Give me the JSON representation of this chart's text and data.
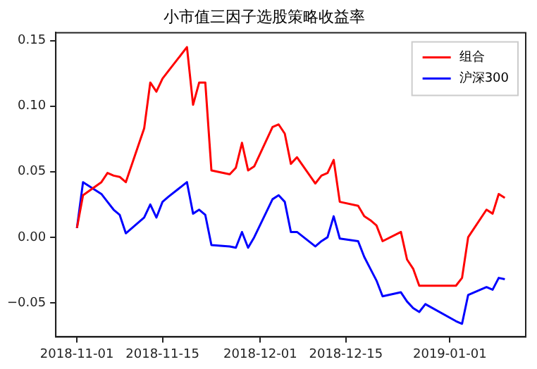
{
  "chart_data": {
    "type": "line",
    "title": "小市值三因子选股策略收益率",
    "x": [
      "2018-11-01",
      "2018-11-02",
      "2018-11-05",
      "2018-11-06",
      "2018-11-07",
      "2018-11-08",
      "2018-11-09",
      "2018-11-12",
      "2018-11-13",
      "2018-11-14",
      "2018-11-15",
      "2018-11-16",
      "2018-11-19",
      "2018-11-20",
      "2018-11-21",
      "2018-11-22",
      "2018-11-23",
      "2018-11-26",
      "2018-11-27",
      "2018-11-28",
      "2018-11-29",
      "2018-11-30",
      "2018-12-03",
      "2018-12-04",
      "2018-12-05",
      "2018-12-06",
      "2018-12-07",
      "2018-12-10",
      "2018-12-11",
      "2018-12-12",
      "2018-12-13",
      "2018-12-14",
      "2018-12-17",
      "2018-12-18",
      "2018-12-19",
      "2018-12-20",
      "2018-12-21",
      "2018-12-24",
      "2018-12-25",
      "2018-12-26",
      "2018-12-27",
      "2018-12-28",
      "2019-01-02",
      "2019-01-03",
      "2019-01-04",
      "2019-01-07",
      "2019-01-08",
      "2019-01-09",
      "2019-01-10"
    ],
    "series": [
      {
        "name": "组合",
        "color": "#ff0000",
        "values": [
          0.007,
          0.032,
          0.042,
          0.049,
          0.047,
          0.046,
          0.042,
          0.083,
          0.118,
          0.111,
          0.121,
          0.127,
          0.145,
          0.101,
          0.118,
          0.118,
          0.051,
          0.048,
          0.053,
          0.072,
          0.051,
          0.054,
          0.084,
          0.086,
          0.079,
          0.056,
          0.061,
          0.041,
          0.047,
          0.049,
          0.059,
          0.027,
          0.024,
          0.016,
          0.013,
          0.009,
          -0.003,
          0.004,
          -0.017,
          -0.024,
          -0.037,
          -0.037,
          -0.037,
          -0.031,
          0.0,
          0.021,
          0.018,
          0.033,
          0.03
        ]
      },
      {
        "name": "沪深300",
        "color": "#0000ff",
        "values": [
          0.007,
          0.042,
          0.033,
          0.027,
          0.021,
          0.017,
          0.003,
          0.015,
          0.025,
          0.015,
          0.027,
          0.031,
          0.042,
          0.018,
          0.021,
          0.017,
          -0.006,
          -0.007,
          -0.008,
          0.004,
          -0.008,
          0.0,
          0.029,
          0.032,
          0.027,
          0.004,
          0.004,
          -0.007,
          -0.003,
          0.0,
          0.016,
          -0.001,
          -0.003,
          -0.015,
          -0.024,
          -0.033,
          -0.045,
          -0.042,
          -0.049,
          -0.054,
          -0.057,
          -0.051,
          -0.064,
          -0.066,
          -0.044,
          -0.038,
          -0.04,
          -0.031,
          -0.032
        ]
      }
    ],
    "xlim": [
      "2018-10-28T13:00",
      "2019-01-13T10:00"
    ],
    "xticks": [
      "2018-11-01",
      "2018-11-15",
      "2018-12-01",
      "2018-12-15",
      "2019-01-01"
    ],
    "ylim": [
      -0.076,
      0.156
    ],
    "yticks": [
      {
        "value": -0.05,
        "label": "−0.05"
      },
      {
        "value": 0,
        "label": "0.00"
      },
      {
        "value": 0.05,
        "label": "0.05"
      },
      {
        "value": 0.1,
        "label": "0.10"
      },
      {
        "value": 0.15,
        "label": "0.15"
      }
    ],
    "grid": false,
    "legend": "top right",
    "marker": "none",
    "line_style": "solid"
  }
}
